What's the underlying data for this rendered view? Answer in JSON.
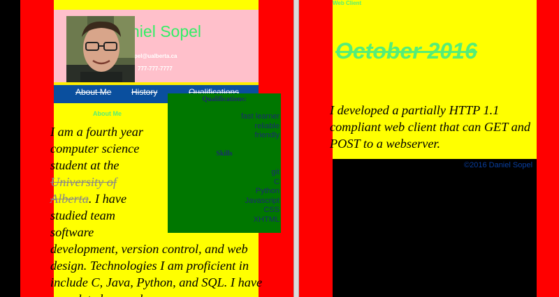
{
  "profile": {
    "name": "Daniel Sopel",
    "name_visible": "niel Sopel",
    "email": "sopel@ualberta.ca",
    "email_visible": "opel@ualberta.ca",
    "phone": "777-777-7777"
  },
  "nav": {
    "items": [
      {
        "label": "About Me"
      },
      {
        "label": "History"
      },
      {
        "label": "Qualifications"
      }
    ]
  },
  "about": {
    "heading": "About Me",
    "text_before": "I am a fourth year computer science student at the ",
    "university": "University of Alberta",
    "text_after": ". I have studied team software development, version control, and web design. Technologies I am proficient in include C, Java, Python, and SQL. I have completed several"
  },
  "qualifications": {
    "title": "Qualifications:",
    "items": [
      "fast learner",
      "reliable",
      "friendly"
    ]
  },
  "skills": {
    "title": "Skills",
    "items": [
      "git",
      "C",
      "Python",
      "Javascript",
      "CSS",
      "XHTML"
    ]
  },
  "project": {
    "label": "Web Client",
    "date": "October 2016",
    "description": "I developed a partially HTTP 1.1 compliant web client that can GET and POST to a webserver."
  },
  "footer": {
    "copyright": "©2016 Daniel Sopel"
  },
  "colors": {
    "background": "#000000",
    "side_red": "#ff0000",
    "content_yellow": "#ffff00",
    "header_pink": "#ffc0cb",
    "accent_green": "#55ee77",
    "nav_blue": "#0a4f9e",
    "qual_green": "#007700",
    "qual_text": "#1a2c6e"
  }
}
